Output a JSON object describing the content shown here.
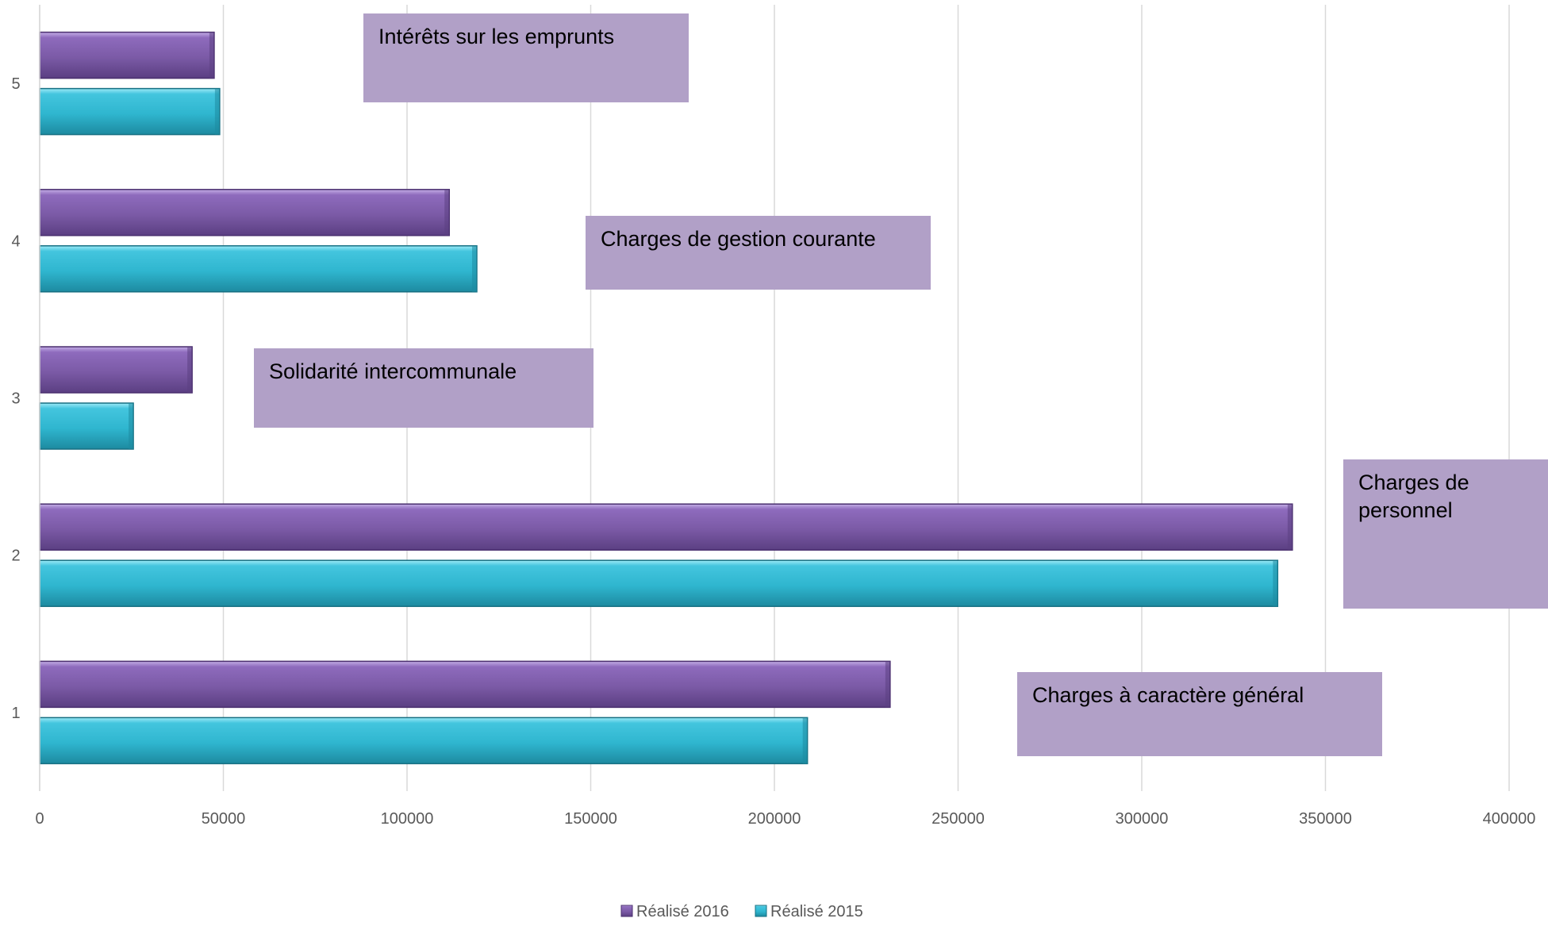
{
  "chart_data": {
    "type": "bar",
    "orientation": "horizontal",
    "categories": [
      "1",
      "2",
      "3",
      "4",
      "5"
    ],
    "series": [
      {
        "name": "Réalisé 2016",
        "values": [
          231500,
          341000,
          41500,
          111500,
          47500
        ],
        "color": "#7b5aa6"
      },
      {
        "name": "Réalisé 2015",
        "values": [
          209000,
          337000,
          25500,
          119000,
          49000
        ],
        "color": "#2fb6cf"
      }
    ],
    "xlim": [
      0,
      400000
    ],
    "xticks": [
      "0",
      "50000",
      "100000",
      "150000",
      "200000",
      "250000",
      "300000",
      "350000",
      "400000"
    ],
    "grid": "vertical",
    "legend_position": "bottom",
    "annotations": [
      {
        "category": "1",
        "lines": [
          "Charges à caractère général"
        ]
      },
      {
        "category": "2",
        "lines": [
          "Charges de",
          "personnel"
        ]
      },
      {
        "category": "3",
        "lines": [
          "Solidarité intercommunale"
        ]
      },
      {
        "category": "4",
        "lines": [
          "Charges de gestion courante"
        ]
      },
      {
        "category": "5",
        "lines": [
          "Intérêts sur les emprunts"
        ]
      }
    ],
    "annotation_color": "#b1a0c7"
  }
}
